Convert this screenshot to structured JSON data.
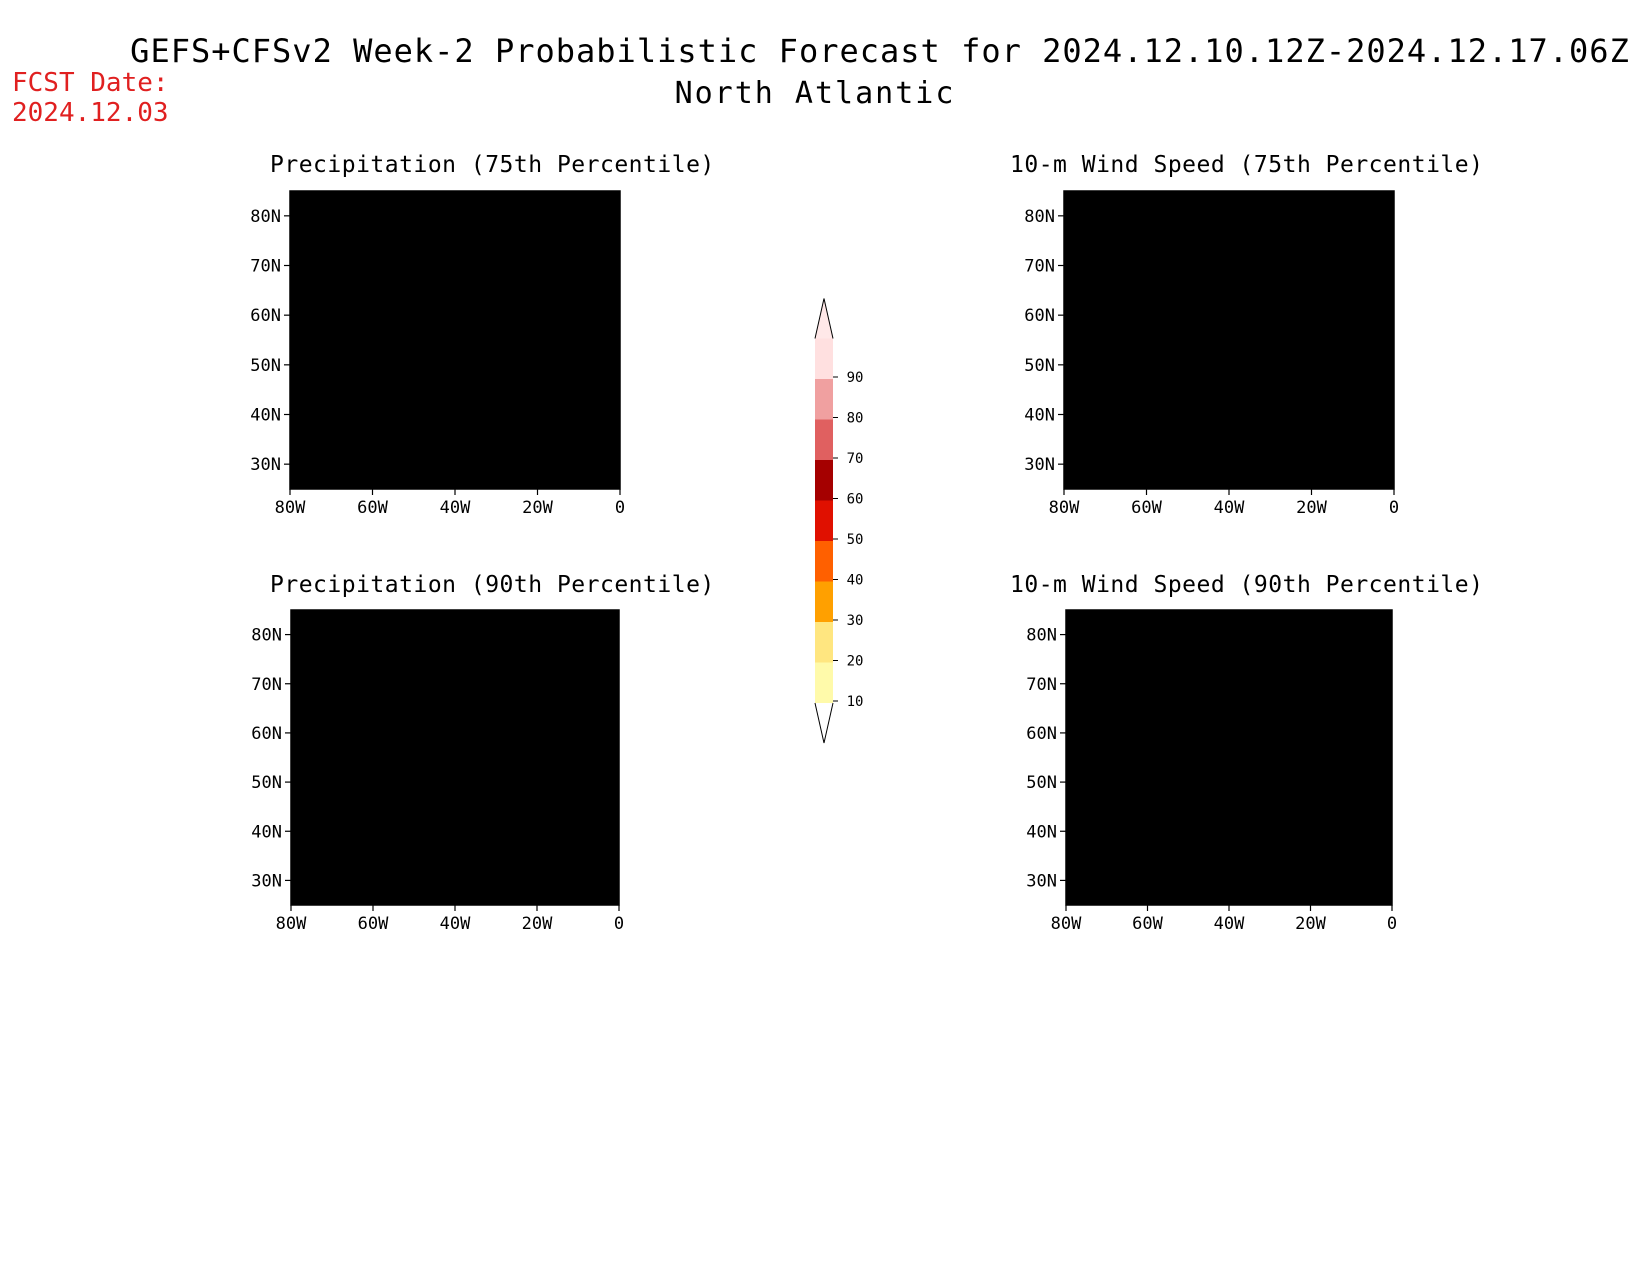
{
  "header": {
    "title": "GEFS+CFSv2 Week-2 Probabilistic Forecast for 2024.12.10.12Z-2024.12.17.06Z",
    "subtitle": "North Atlantic",
    "fcst_label": "FCST Date:",
    "fcst_date": "2024.12.03"
  },
  "axes": {
    "lat_labels": [
      "80N",
      "70N",
      "60N",
      "50N",
      "40N",
      "30N"
    ],
    "lon_labels": [
      "80W",
      "60W",
      "40W",
      "20W",
      "0"
    ]
  },
  "panels": [
    {
      "id": "precip-75",
      "title": "Precipitation (75th Percentile)"
    },
    {
      "id": "wind-75",
      "title": "10-m Wind Speed (75th Percentile)"
    },
    {
      "id": "precip-90",
      "title": "Precipitation (90th Percentile)"
    },
    {
      "id": "wind-90",
      "title": "10-m Wind Speed (90th Percentile)"
    }
  ],
  "colorbar": {
    "levels": [
      "10",
      "20",
      "30",
      "40",
      "50",
      "60",
      "70",
      "80",
      "90"
    ],
    "colors": [
      "#fffaaa",
      "#ffe680",
      "#ffa000",
      "#ff6000",
      "#e01000",
      "#a50000",
      "#e06060",
      "#f0a0a0",
      "#ffe0e0"
    ]
  }
}
